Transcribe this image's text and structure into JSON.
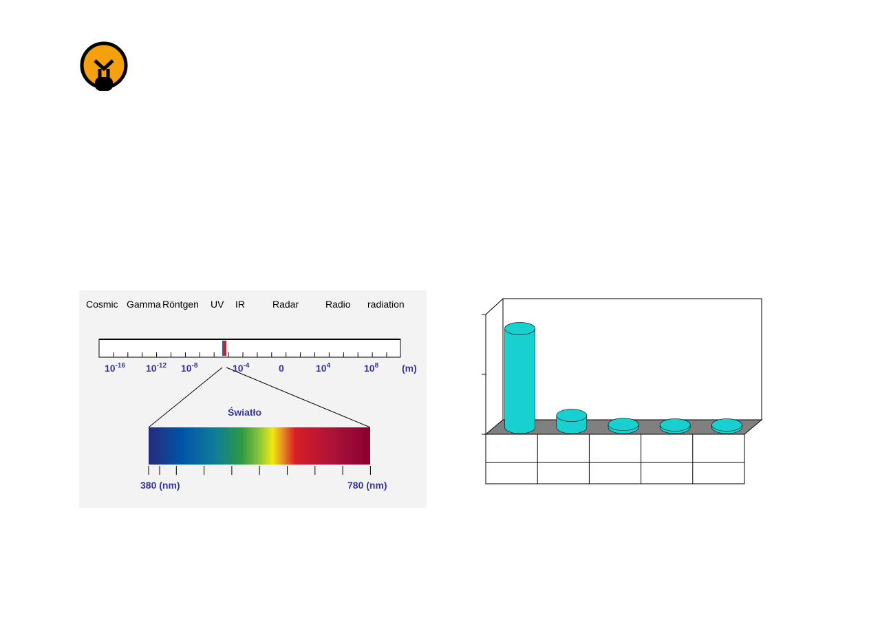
{
  "spectrum": {
    "bands": [
      "Cosmic",
      "Gamma",
      "Röntgen",
      "UV",
      "IR",
      "Radar",
      "Radio",
      "radiation"
    ],
    "scale": [
      {
        "base": "10",
        "exp": "-16"
      },
      {
        "base": "10",
        "exp": "-12"
      },
      {
        "base": "10",
        "exp": "-8"
      },
      {
        "base": "10",
        "exp": "-4"
      },
      {
        "base": "0"
      },
      {
        "base": "10",
        "exp": "4"
      },
      {
        "base": "10",
        "exp": "8"
      },
      {
        "base": "(m)"
      }
    ],
    "light": "Światło",
    "from": "380 (nm)",
    "to": "780 (nm)"
  },
  "chart_data": {
    "type": "bar",
    "categories": [
      null,
      null,
      null,
      null,
      null
    ],
    "values": [
      1.65,
      0.2,
      0.05,
      0.04,
      0.04
    ],
    "color": "#19d0d0",
    "ylim": [
      0,
      2
    ],
    "yticks": [
      0,
      1,
      2
    ]
  }
}
